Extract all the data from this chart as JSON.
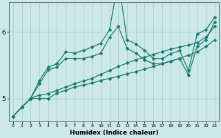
{
  "xlabel": "Humidex (Indice chaleur)",
  "background_color": "#cce8e8",
  "line_color": "#1a7a6e",
  "grid_color": "#aacece",
  "xlim": [
    -0.5,
    23.5
  ],
  "ylim": [
    4.65,
    6.45
  ],
  "yticks": [
    5,
    6
  ],
  "xtick_labels": [
    "0",
    "1",
    "2",
    "3",
    "4",
    "5",
    "6",
    "7",
    "8",
    "9",
    "10",
    "11",
    "12",
    "13",
    "14",
    "15",
    "16",
    "17",
    "18",
    "19",
    "20",
    "21",
    "22",
    "23"
  ],
  "xtick_positions": [
    0,
    1,
    2,
    3,
    4,
    5,
    6,
    7,
    8,
    9,
    10,
    11,
    12,
    13,
    14,
    15,
    16,
    17,
    18,
    19,
    20,
    21,
    22,
    23
  ],
  "series": [
    {
      "x": [
        0,
        1,
        2,
        3,
        4,
        5,
        6,
        7,
        8,
        9,
        10,
        11,
        12,
        13,
        14,
        15,
        16,
        17,
        18,
        19,
        20,
        21,
        22,
        23
      ],
      "y": [
        4.73,
        4.87,
        5.0,
        5.0,
        5.0,
        5.08,
        5.12,
        5.17,
        5.2,
        5.23,
        5.27,
        5.3,
        5.33,
        5.37,
        5.4,
        5.44,
        5.48,
        5.52,
        5.56,
        5.6,
        5.65,
        5.7,
        5.78,
        5.88
      ]
    },
    {
      "x": [
        0,
        1,
        2,
        3,
        4,
        5,
        6,
        7,
        8,
        9,
        10,
        11,
        12,
        13,
        14,
        15,
        16,
        17,
        18,
        19,
        20,
        21,
        22,
        23
      ],
      "y": [
        4.73,
        4.87,
        5.0,
        5.05,
        5.07,
        5.12,
        5.17,
        5.22,
        5.26,
        5.3,
        5.36,
        5.42,
        5.48,
        5.53,
        5.58,
        5.62,
        5.66,
        5.7,
        5.74,
        5.77,
        5.8,
        5.84,
        5.92,
        6.08
      ]
    },
    {
      "x": [
        0,
        1,
        2,
        3,
        4,
        5,
        6,
        7,
        8,
        9,
        10,
        11,
        12,
        13,
        14,
        15,
        16,
        17,
        18,
        19,
        20,
        21,
        22,
        23
      ],
      "y": [
        4.73,
        4.87,
        5.0,
        5.22,
        5.43,
        5.47,
        5.6,
        5.6,
        5.6,
        5.63,
        5.68,
        5.92,
        6.08,
        5.75,
        5.68,
        5.58,
        5.52,
        5.52,
        5.56,
        5.6,
        5.35,
        5.78,
        5.88,
        6.15
      ]
    },
    {
      "x": [
        0,
        1,
        2,
        3,
        4,
        5,
        6,
        7,
        8,
        9,
        10,
        11,
        12,
        13,
        14,
        15,
        16,
        17,
        18,
        19,
        20,
        21,
        22,
        23
      ],
      "y": [
        4.73,
        4.87,
        5.0,
        5.27,
        5.47,
        5.52,
        5.7,
        5.68,
        5.72,
        5.77,
        5.83,
        6.03,
        6.78,
        5.88,
        5.82,
        5.72,
        5.6,
        5.6,
        5.67,
        5.72,
        5.42,
        5.97,
        6.03,
        6.22
      ]
    }
  ],
  "marker": "D",
  "markersize": 2.5,
  "linewidth": 0.9
}
